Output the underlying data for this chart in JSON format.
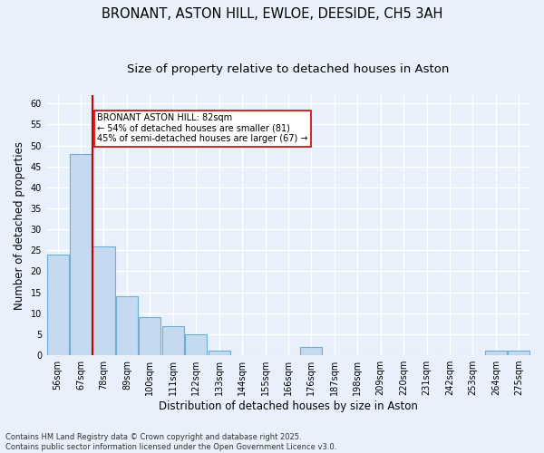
{
  "title_line1": "BRONANT, ASTON HILL, EWLOE, DEESIDE, CH5 3AH",
  "title_line2": "Size of property relative to detached houses in Aston",
  "xlabel": "Distribution of detached houses by size in Aston",
  "ylabel": "Number of detached properties",
  "categories": [
    "56sqm",
    "67sqm",
    "78sqm",
    "89sqm",
    "100sqm",
    "111sqm",
    "122sqm",
    "133sqm",
    "144sqm",
    "155sqm",
    "166sqm",
    "176sqm",
    "187sqm",
    "198sqm",
    "209sqm",
    "220sqm",
    "231sqm",
    "242sqm",
    "253sqm",
    "264sqm",
    "275sqm"
  ],
  "values": [
    24,
    48,
    26,
    14,
    9,
    7,
    5,
    1,
    0,
    0,
    0,
    2,
    0,
    0,
    0,
    0,
    0,
    0,
    0,
    1,
    1
  ],
  "bar_color": "#c5d9ef",
  "bar_edge_color": "#6baed6",
  "red_line_index": 2,
  "red_line_color": "#cc0000",
  "annotation_text": "BRONANT ASTON HILL: 82sqm\n← 54% of detached houses are smaller (81)\n45% of semi-detached houses are larger (67) →",
  "annotation_box_color": "#ffffff",
  "annotation_box_edge_color": "#cc0000",
  "ylim": [
    0,
    62
  ],
  "yticks": [
    0,
    5,
    10,
    15,
    20,
    25,
    30,
    35,
    40,
    45,
    50,
    55,
    60
  ],
  "footnote": "Contains HM Land Registry data © Crown copyright and database right 2025.\nContains public sector information licensed under the Open Government Licence v3.0.",
  "bg_color": "#e8f1fb",
  "grid_color": "#ffffff",
  "title_fontsize": 10.5,
  "subtitle_fontsize": 9.5,
  "axis_label_fontsize": 8.5,
  "tick_fontsize": 7,
  "footnote_fontsize": 6,
  "annotation_fontsize": 7
}
